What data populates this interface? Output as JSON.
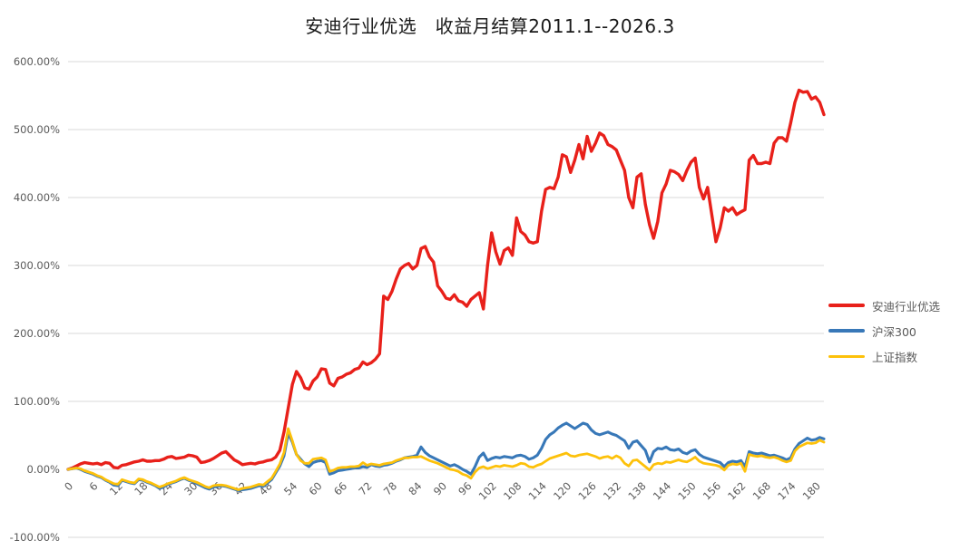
{
  "title": "安迪行业优选　收益月结算2011.1--2026.3",
  "colors": {
    "background": "#ffffff",
    "gridline": "#d9d9d9",
    "axis_text": "#595959",
    "title_text": "#1a1a1a"
  },
  "chart_data": {
    "type": "line",
    "title": "安迪行业优选　收益月结算2011.1--2026.3",
    "x_start": 0,
    "x_step": 1,
    "n_points": 183,
    "xlim": [
      0,
      182
    ],
    "ylim": [
      -100,
      600
    ],
    "grid": true,
    "legend_position": "right",
    "x_tick_interval": 6,
    "x_tick_labels": [
      "0",
      "6",
      "12",
      "18",
      "24",
      "30",
      "36",
      "42",
      "48",
      "54",
      "60",
      "66",
      "72",
      "78",
      "84",
      "90",
      "96",
      "102",
      "108",
      "114",
      "120",
      "126",
      "132",
      "138",
      "144",
      "150",
      "156",
      "162",
      "168",
      "174",
      "180"
    ],
    "y_ticks": [
      {
        "value": 600,
        "label": "600.00%"
      },
      {
        "value": 500,
        "label": "500.00%"
      },
      {
        "value": 400,
        "label": "400.00%"
      },
      {
        "value": 300,
        "label": "300.00%"
      },
      {
        "value": 200,
        "label": "200.00%"
      },
      {
        "value": 100,
        "label": "100.00%"
      },
      {
        "value": 0,
        "label": "0.00%"
      },
      {
        "value": -100,
        "label": "-100.00%"
      }
    ],
    "series": [
      {
        "name": "安迪行业优选",
        "color": "#e8201a",
        "stroke_width": 3.4,
        "unit": "%",
        "values": [
          0,
          2,
          5,
          8,
          10,
          9,
          8,
          9,
          7,
          10,
          9,
          3,
          2,
          6,
          7,
          9,
          11,
          12,
          14,
          12,
          12,
          13,
          13,
          15,
          18,
          19,
          16,
          17,
          18,
          21,
          20,
          18,
          10,
          11,
          13,
          16,
          20,
          24,
          26,
          20,
          14,
          11,
          7,
          8,
          9,
          8,
          10,
          11,
          13,
          14,
          18,
          28,
          55,
          90,
          125,
          144,
          135,
          120,
          118,
          130,
          136,
          148,
          147,
          127,
          123,
          134,
          136,
          140,
          142,
          147,
          149,
          158,
          154,
          157,
          162,
          170,
          255,
          250,
          262,
          280,
          295,
          300,
          303,
          295,
          300,
          325,
          328,
          313,
          305,
          270,
          262,
          252,
          250,
          257,
          248,
          246,
          240,
          250,
          255,
          260,
          236,
          300,
          348,
          320,
          302,
          322,
          326,
          315,
          370,
          350,
          345,
          335,
          333,
          335,
          380,
          412,
          415,
          413,
          430,
          463,
          460,
          437,
          455,
          478,
          457,
          490,
          468,
          480,
          495,
          491,
          478,
          475,
          470,
          455,
          440,
          400,
          385,
          430,
          435,
          390,
          360,
          340,
          365,
          407,
          420,
          440,
          438,
          434,
          425,
          440,
          452,
          458,
          415,
          398,
          415,
          375,
          335,
          355,
          385,
          380,
          385,
          375,
          379,
          382,
          455,
          462,
          450,
          450,
          452,
          450,
          480,
          488,
          488,
          483,
          510,
          540,
          558,
          555,
          556,
          545,
          548,
          540,
          522
        ]
      },
      {
        "name": "沪深300",
        "color": "#3878b8",
        "stroke_width": 3.1,
        "unit": "%",
        "values": [
          0,
          1,
          2,
          0,
          -3,
          -5,
          -7,
          -10,
          -12,
          -16,
          -19,
          -23,
          -24,
          -16,
          -18,
          -20,
          -21,
          -15,
          -16,
          -19,
          -21,
          -24,
          -28,
          -26,
          -22,
          -20,
          -18,
          -15,
          -13,
          -16,
          -18,
          -21,
          -24,
          -27,
          -29,
          -26,
          -25,
          -24,
          -25,
          -27,
          -29,
          -31,
          -30,
          -29,
          -28,
          -26,
          -24,
          -25,
          -20,
          -15,
          -5,
          5,
          20,
          53,
          40,
          22,
          15,
          8,
          4,
          10,
          12,
          13,
          10,
          -7,
          -5,
          -2,
          -1,
          0,
          1,
          2,
          2,
          4,
          3,
          7,
          5,
          4,
          6,
          7,
          9,
          12,
          14,
          17,
          18,
          19,
          21,
          33,
          25,
          20,
          17,
          14,
          11,
          8,
          5,
          7,
          4,
          0,
          -3,
          -7,
          4,
          18,
          24,
          13,
          16,
          18,
          17,
          19,
          18,
          17,
          20,
          21,
          19,
          15,
          17,
          21,
          31,
          44,
          51,
          55,
          61,
          65,
          68,
          64,
          60,
          64,
          68,
          66,
          58,
          53,
          51,
          53,
          55,
          52,
          50,
          46,
          42,
          31,
          40,
          42,
          35,
          28,
          11,
          26,
          31,
          30,
          33,
          29,
          28,
          30,
          25,
          23,
          27,
          29,
          22,
          18,
          16,
          14,
          12,
          10,
          4,
          10,
          12,
          11,
          13,
          4,
          26,
          24,
          23,
          24,
          22,
          20,
          21,
          19,
          17,
          14,
          17,
          30,
          38,
          42,
          46,
          43,
          44,
          47,
          45
        ]
      },
      {
        "name": "上证指数",
        "color": "#fdc10a",
        "stroke_width": 2.8,
        "unit": "%",
        "values": [
          0,
          1,
          2,
          1,
          -2,
          -4,
          -6,
          -9,
          -11,
          -15,
          -18,
          -21,
          -22,
          -15,
          -17,
          -19,
          -20,
          -14,
          -15,
          -18,
          -20,
          -23,
          -26,
          -24,
          -21,
          -19,
          -17,
          -14,
          -12,
          -15,
          -17,
          -19,
          -22,
          -25,
          -27,
          -24,
          -23,
          -23,
          -24,
          -26,
          -28,
          -30,
          -28,
          -27,
          -26,
          -24,
          -22,
          -23,
          -18,
          -13,
          -3,
          8,
          25,
          60,
          42,
          22,
          13,
          9,
          9,
          15,
          16,
          17,
          14,
          -3,
          -1,
          2,
          3,
          3,
          4,
          4,
          5,
          10,
          6,
          8,
          7,
          6,
          8,
          9,
          10,
          13,
          15,
          17,
          17,
          18,
          18,
          19,
          16,
          13,
          11,
          9,
          6,
          3,
          0,
          -1,
          -3,
          -7,
          -9,
          -13,
          -4,
          2,
          4,
          1,
          3,
          5,
          4,
          6,
          5,
          4,
          6,
          9,
          8,
          4,
          3,
          6,
          8,
          12,
          16,
          18,
          20,
          22,
          24,
          20,
          19,
          21,
          22,
          23,
          21,
          19,
          16,
          18,
          19,
          16,
          20,
          17,
          9,
          5,
          13,
          14,
          9,
          4,
          -1,
          7,
          9,
          8,
          11,
          10,
          12,
          14,
          12,
          11,
          14,
          18,
          12,
          9,
          8,
          7,
          6,
          4,
          -1,
          6,
          8,
          7,
          9,
          -3,
          22,
          20,
          19,
          20,
          18,
          17,
          18,
          16,
          13,
          11,
          13,
          27,
          33,
          36,
          39,
          38,
          39,
          43,
          40
        ]
      }
    ]
  },
  "legend": {
    "items": [
      {
        "label": "安迪行业优选",
        "color": "#e8201a"
      },
      {
        "label": "沪深300",
        "color": "#3878b8"
      },
      {
        "label": "上证指数",
        "color": "#fdc10a"
      }
    ]
  }
}
